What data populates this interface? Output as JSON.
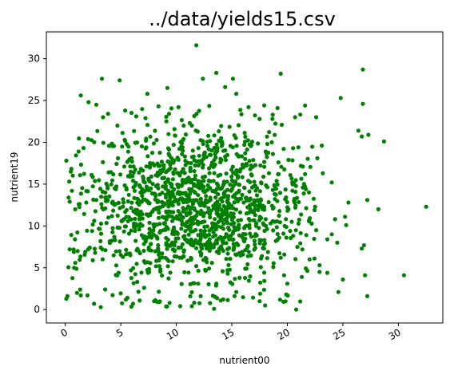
{
  "chart_data": {
    "type": "scatter",
    "title": "../data/yields15.csv",
    "xlabel": "nutrient00",
    "ylabel": "nutrient19",
    "xlim": [
      -1.7,
      34.0
    ],
    "ylim": [
      -1.6,
      33.2
    ],
    "xticks": [
      0,
      5,
      10,
      15,
      20,
      25,
      30
    ],
    "yticks": [
      0,
      5,
      10,
      15,
      20,
      25,
      30
    ],
    "xtick_rotation_deg": 30,
    "grid": false,
    "legend": "none",
    "marker_color": "#008000",
    "points_note": "approximate point cloud (~1500 points)",
    "points": [
      [
        0.1,
        1.3
      ],
      [
        0.2,
        1.6
      ],
      [
        0.3,
        13.4
      ],
      [
        0.1,
        17.8
      ],
      [
        0.4,
        12.9
      ],
      [
        0.6,
        14.2
      ],
      [
        0.5,
        16.5
      ],
      [
        0.9,
        12.0
      ],
      [
        0.4,
        7.2
      ],
      [
        0.8,
        5.0
      ],
      [
        2.0,
        1.7
      ],
      [
        1.4,
        1.7
      ],
      [
        2.6,
        0.7
      ],
      [
        3.2,
        0.3
      ],
      [
        3.6,
        2.4
      ],
      [
        3.3,
        27.6
      ],
      [
        4.9,
        27.4
      ],
      [
        1.4,
        25.6
      ],
      [
        2.1,
        24.8
      ],
      [
        2.8,
        24.5
      ],
      [
        3.4,
        23.0
      ],
      [
        4.7,
        22.0
      ],
      [
        5.4,
        23.8
      ],
      [
        6.4,
        23.1
      ],
      [
        7.4,
        25.8
      ],
      [
        8.4,
        24.3
      ],
      [
        9.2,
        26.5
      ],
      [
        10.2,
        24.2
      ],
      [
        11.4,
        22.0
      ],
      [
        11.8,
        31.6
      ],
      [
        12.4,
        27.6
      ],
      [
        13.6,
        28.3
      ],
      [
        14.4,
        26.6
      ],
      [
        15.1,
        27.6
      ],
      [
        15.4,
        25.8
      ],
      [
        16.5,
        24.2
      ],
      [
        17.5,
        22.8
      ],
      [
        19.4,
        28.2
      ],
      [
        20.7,
        23.0
      ],
      [
        21.6,
        24.4
      ],
      [
        22.6,
        23.0
      ],
      [
        24.8,
        25.3
      ],
      [
        26.8,
        28.7
      ],
      [
        26.8,
        24.6
      ],
      [
        27.3,
        20.9
      ],
      [
        26.4,
        21.4
      ],
      [
        26.7,
        20.7
      ],
      [
        28.7,
        20.1
      ],
      [
        32.5,
        12.3
      ],
      [
        30.5,
        4.1
      ],
      [
        28.2,
        12.0
      ],
      [
        27.2,
        13.1
      ],
      [
        26.7,
        7.3
      ],
      [
        26.9,
        7.7
      ],
      [
        27.0,
        4.1
      ],
      [
        27.2,
        1.6
      ],
      [
        25.0,
        3.6
      ],
      [
        24.6,
        2.1
      ],
      [
        23.6,
        4.4
      ],
      [
        22.9,
        4.5
      ],
      [
        20.8,
        0.0
      ],
      [
        19.9,
        1.8
      ],
      [
        18.0,
        0.5
      ],
      [
        17.5,
        1.0
      ],
      [
        15.4,
        2.1
      ],
      [
        13.4,
        0.1
      ],
      [
        11.4,
        0.4
      ],
      [
        12.2,
        1.6
      ],
      [
        9.4,
        0.8
      ],
      [
        8.0,
        1.0
      ],
      [
        6.1,
        0.7
      ],
      [
        5.6,
        1.4
      ],
      [
        7.1,
        2.6
      ],
      [
        25.5,
        12.8
      ],
      [
        25.2,
        11.1
      ],
      [
        24.3,
        10.8
      ],
      [
        24.0,
        9.0
      ],
      [
        23.6,
        8.4
      ],
      [
        24.5,
        8.0
      ],
      [
        25.3,
        10.1
      ],
      [
        23.2,
        16.3
      ],
      [
        24.0,
        15.2
      ],
      [
        22.7,
        18.1
      ],
      [
        23.1,
        19.6
      ],
      [
        21.4,
        17.1
      ],
      [
        21.6,
        16.2
      ],
      [
        22.5,
        12.3
      ],
      [
        22.6,
        9.5
      ],
      [
        22.0,
        6.0
      ],
      [
        22.9,
        5.3
      ],
      [
        20.4,
        10.5
      ],
      [
        20.9,
        7.5
      ],
      [
        21.3,
        3.9
      ],
      [
        20.0,
        3.1
      ],
      [
        19.4,
        6.2
      ],
      [
        18.7,
        14.3
      ],
      [
        19.2,
        17.6
      ],
      [
        19.8,
        13.2
      ],
      [
        20.1,
        12.0
      ],
      [
        18.6,
        20.0
      ]
    ]
  }
}
